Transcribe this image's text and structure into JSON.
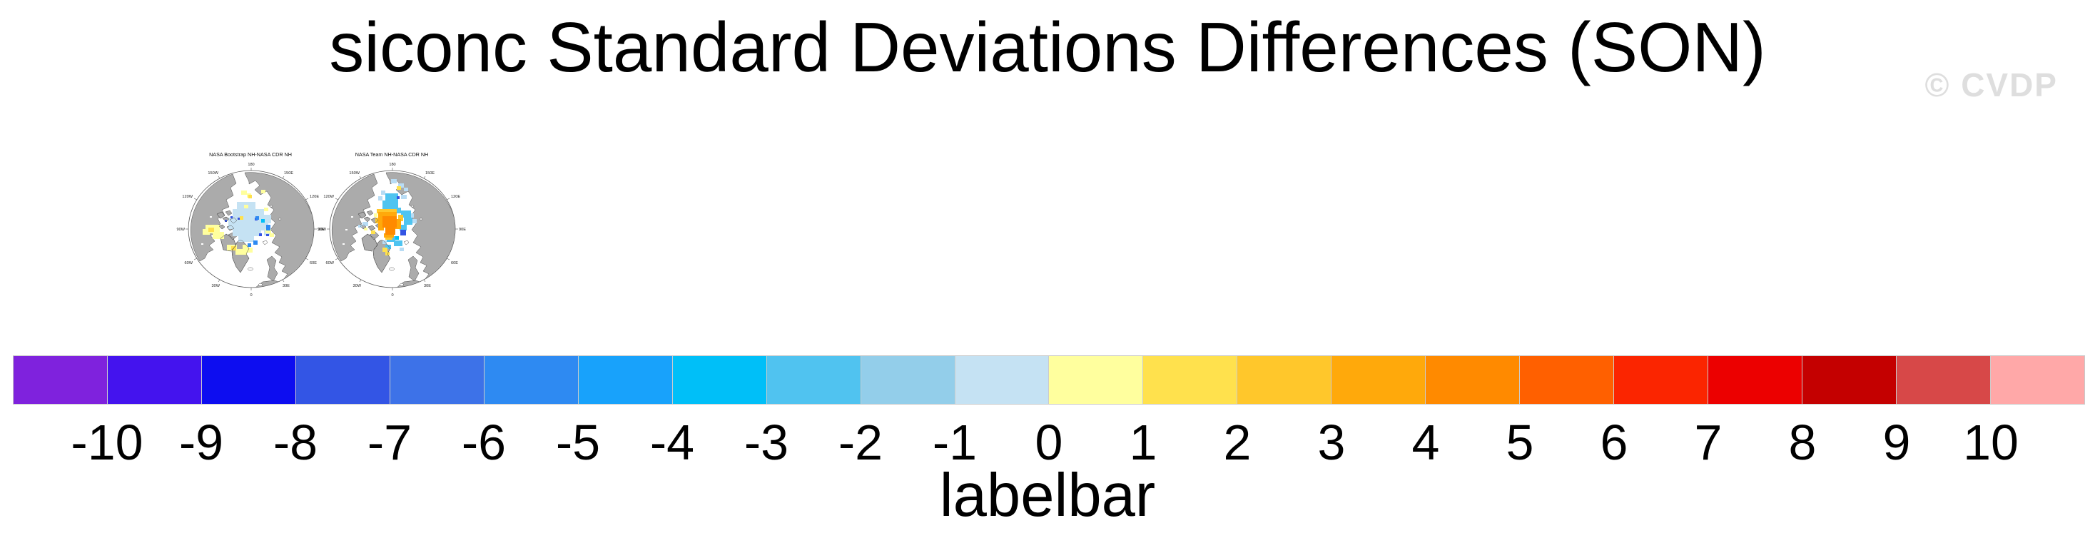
{
  "header": {
    "title": "siconc Standard Deviations Differences (SON)",
    "watermark": "© CVDP"
  },
  "maps": [
    {
      "title": "NASA Bootstrap NH-NASA CDR NH",
      "lon_labels": [
        "180",
        "150E",
        "120E",
        "90E",
        "60E",
        "30E",
        "0",
        "30W",
        "60W",
        "90W",
        "120W",
        "150W"
      ],
      "cells": [
        [
          86,
          80,
          26,
          10,
          "#C5E2F3"
        ],
        [
          80,
          90,
          44,
          12,
          "#C5E2F3"
        ],
        [
          74,
          102,
          50,
          16,
          "#C5E2F3"
        ],
        [
          80,
          118,
          40,
          10,
          "#C5E2F3"
        ],
        [
          88,
          128,
          22,
          8,
          "#C5E2F3"
        ],
        [
          118,
          98,
          16,
          12,
          "#C5E2F3"
        ],
        [
          112,
          110,
          18,
          10,
          "#C5E2F3"
        ],
        [
          124,
          120,
          8,
          7,
          "#C5E2F3"
        ],
        [
          42,
          112,
          20,
          12,
          "#FFFF9E"
        ],
        [
          52,
          122,
          16,
          10,
          "#FFFF9E"
        ],
        [
          38,
          118,
          10,
          8,
          "#FFFF9E"
        ],
        [
          72,
          140,
          14,
          8,
          "#FFFF9E"
        ],
        [
          84,
          146,
          16,
          8,
          "#FFFF9E"
        ],
        [
          94,
          140,
          8,
          6,
          "#FFFF9E"
        ],
        [
          92,
          64,
          8,
          6,
          "#FFFF9E"
        ],
        [
          100,
          68,
          6,
          6,
          "#FFFF9E"
        ],
        [
          120,
          63,
          6,
          5,
          "#FFFF9E"
        ],
        [
          126,
          118,
          8,
          6,
          "#FFFF9E"
        ],
        [
          132,
          124,
          6,
          5,
          "#FFFF9E"
        ],
        [
          124,
          88,
          6,
          5,
          "#FFFF9E"
        ],
        [
          98,
          144,
          10,
          7,
          "#FFFF9E"
        ],
        [
          96,
          84,
          6,
          5,
          "#FFFF9E"
        ],
        [
          46,
          116,
          8,
          6,
          "#FFE14D"
        ],
        [
          78,
          142,
          7,
          6,
          "#FFE14D"
        ],
        [
          90,
          100,
          5,
          5,
          "#FFE14D"
        ],
        [
          102,
          70,
          5,
          5,
          "#FFE14D"
        ],
        [
          77,
          100,
          3,
          3,
          "#3354E4"
        ],
        [
          87,
          102,
          3,
          3,
          "#3354E4"
        ],
        [
          69,
          105,
          3,
          3,
          "#3354E4"
        ],
        [
          111,
          102,
          4,
          4,
          "#3354E4"
        ],
        [
          117,
          124,
          4,
          4,
          "#3354E4"
        ],
        [
          127,
          125,
          4,
          3,
          "#3354E4"
        ],
        [
          127,
          112,
          6,
          8,
          "#2E8AF2"
        ],
        [
          109,
          134,
          6,
          6,
          "#2E8AF2"
        ],
        [
          101,
          138,
          5,
          5,
          "#2E8AF2"
        ],
        [
          112,
          100,
          5,
          5,
          "#2E8AF2"
        ],
        [
          120,
          104,
          5,
          5,
          "#00BFF8"
        ]
      ]
    },
    {
      "title": "NASA Team NH-NASA CDR NH",
      "lon_labels": [
        "180",
        "150E",
        "120E",
        "90E",
        "60E",
        "30E",
        "0",
        "30W",
        "60W",
        "90W",
        "120W",
        "150W"
      ],
      "cells": [
        [
          104,
          48,
          8,
          6,
          "#B8DCF4"
        ],
        [
          114,
          54,
          8,
          6,
          "#B8DCF4"
        ],
        [
          122,
          60,
          6,
          5,
          "#B8DCF4"
        ],
        [
          90,
          64,
          6,
          6,
          "#B8DCF4"
        ],
        [
          118,
          70,
          8,
          6,
          "#B8DCF4"
        ],
        [
          130,
          96,
          6,
          6,
          "#B8DCF4"
        ],
        [
          134,
          104,
          6,
          6,
          "#B8DCF4"
        ],
        [
          92,
          134,
          6,
          5,
          "#B8DCF4"
        ],
        [
          116,
          144,
          6,
          5,
          "#B8DCF4"
        ],
        [
          64,
          108,
          8,
          6,
          "#B8DCF4"
        ],
        [
          58,
          112,
          5,
          4,
          "#B8DCF4"
        ],
        [
          86,
          72,
          6,
          6,
          "#B8DCF4"
        ],
        [
          96,
          68,
          18,
          10,
          "#4FC4F0"
        ],
        [
          92,
          78,
          22,
          12,
          "#4FC4F0"
        ],
        [
          108,
          88,
          10,
          8,
          "#4FC4F0"
        ],
        [
          118,
          92,
          14,
          10,
          "#4FC4F0"
        ],
        [
          122,
          102,
          12,
          10,
          "#4FC4F0"
        ],
        [
          116,
          112,
          10,
          8,
          "#4FC4F0"
        ],
        [
          98,
          128,
          12,
          8,
          "#4FC4F0"
        ],
        [
          108,
          134,
          12,
          8,
          "#4FC4F0"
        ],
        [
          96,
          140,
          8,
          6,
          "#4FC4F0"
        ],
        [
          117,
          119,
          8,
          8,
          "#3354E4"
        ],
        [
          112,
          72,
          4,
          4,
          "#3354E4"
        ],
        [
          110,
          128,
          5,
          5,
          "#00BFF8"
        ],
        [
          84,
          90,
          28,
          6,
          "#FFC72B"
        ],
        [
          114,
          98,
          7,
          9,
          "#FFC72B"
        ],
        [
          82,
          102,
          6,
          8,
          "#FFC72B"
        ],
        [
          96,
          128,
          10,
          5,
          "#FFC72B"
        ],
        [
          86,
          94,
          26,
          10,
          "#FFA90B"
        ],
        [
          86,
          104,
          8,
          16,
          "#FFA90B"
        ],
        [
          108,
          104,
          10,
          14,
          "#FFA90B"
        ],
        [
          94,
          124,
          14,
          6,
          "#FFA90B"
        ],
        [
          92,
          100,
          20,
          16,
          "#FF8A00"
        ],
        [
          96,
          114,
          14,
          12,
          "#FF8A00"
        ],
        [
          76,
          120,
          6,
          5,
          "#FFE14D"
        ],
        [
          92,
          144,
          7,
          6,
          "#FFE14D"
        ],
        [
          96,
          150,
          6,
          5,
          "#FFE14D"
        ],
        [
          112,
          58,
          6,
          5,
          "#FFE14D"
        ],
        [
          66,
          116,
          5,
          4,
          "#FFFF9E"
        ],
        [
          80,
          96,
          5,
          5,
          "#FFFF9E"
        ]
      ]
    }
  ],
  "colorbar": {
    "label": "labelbar",
    "tick_labels": [
      "-10",
      "-9",
      "-8",
      "-7",
      "-6",
      "-5",
      "-4",
      "-3",
      "-2",
      "-1",
      "0",
      "1",
      "2",
      "3",
      "4",
      "5",
      "6",
      "7",
      "8",
      "9",
      "10"
    ],
    "segment_colors": [
      "#7F22DD",
      "#4413EE",
      "#0D0DF0",
      "#3355E5",
      "#3D72E8",
      "#2E8AF2",
      "#18A2FB",
      "#00BFF8",
      "#50C3F0",
      "#93CEEA",
      "#C5E2F3",
      "#FFFF9E",
      "#FFE14D",
      "#FFC72B",
      "#FFA90B",
      "#FF8A00",
      "#FF6000",
      "#FB2500",
      "#EC0000",
      "#C40000",
      "#D74848",
      "#FFA8A8"
    ]
  },
  "colors": {
    "land": "#ABABAB",
    "ocean": "#FFFFFF",
    "coastline": "#4A4A4A",
    "watermark_gray": "#DEDEDE"
  },
  "chart_data": {
    "type": "heatmap",
    "title": "siconc Standard Deviations Differences (SON)",
    "variable": "siconc",
    "season": "SON",
    "panels": [
      {
        "title": "NASA Bootstrap NH-NASA CDR NH",
        "projection": "polar stereographic, Northern Hemisphere",
        "lon_gridline_labels": [
          "180",
          "150E",
          "120E",
          "90E",
          "60E",
          "30E",
          "0",
          "30W",
          "60W",
          "90W",
          "120W",
          "150W"
        ],
        "visible_pattern": "pale blue (~-1) area over central Arctic; pale yellow (~0 to 1) patches over Canadian Archipelago, Beaufort side and marginal seas; scattered blue (-2 to -8) specks"
      },
      {
        "title": "NASA Team NH-NASA CDR NH",
        "projection": "polar stereographic, Northern Hemisphere",
        "lon_gridline_labels": [
          "180",
          "150E",
          "120E",
          "90E",
          "60E",
          "30E",
          "0",
          "30W",
          "60W",
          "90W",
          "120W",
          "150W"
        ],
        "visible_pattern": "orange core (~3 to 5) near the pole ringed by medium/light blue (-1 to -5) cells; scattered yellow specks in marginal seas"
      }
    ],
    "colorbar": {
      "label": "labelbar",
      "ticks": [
        -10,
        -9,
        -8,
        -7,
        -6,
        -5,
        -4,
        -3,
        -2,
        -1,
        0,
        1,
        2,
        3,
        4,
        5,
        6,
        7,
        8,
        9,
        10
      ],
      "n_segments": 22,
      "colors": [
        "#7F22DD",
        "#4413EE",
        "#0D0DF0",
        "#3355E5",
        "#3D72E8",
        "#2E8AF2",
        "#18A2FB",
        "#00BFF8",
        "#50C3F0",
        "#93CEEA",
        "#C5E2F3",
        "#FFFF9E",
        "#FFE14D",
        "#FFC72B",
        "#FFA90B",
        "#FF8A00",
        "#FF6000",
        "#FB2500",
        "#EC0000",
        "#C40000",
        "#D74848",
        "#FFA8A8"
      ],
      "orientation": "horizontal",
      "position": "bottom"
    }
  }
}
